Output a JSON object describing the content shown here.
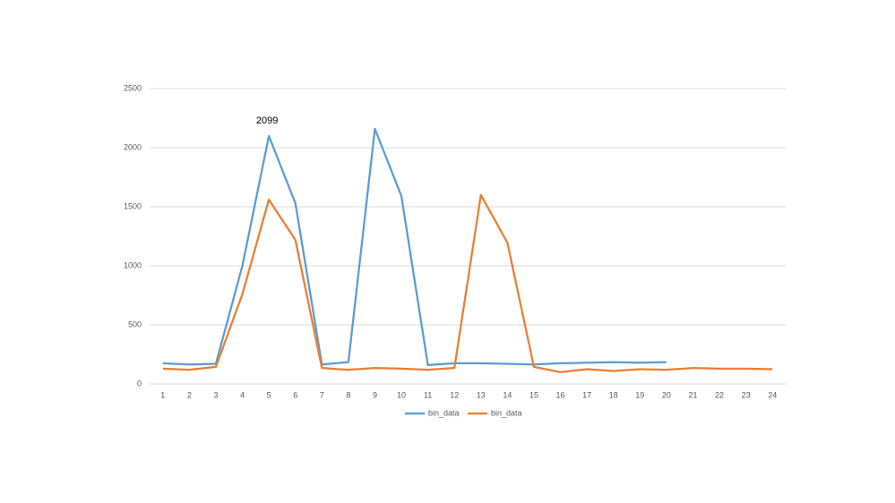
{
  "chart_data": {
    "type": "line",
    "categories": [
      "1",
      "2",
      "3",
      "4",
      "5",
      "6",
      "7",
      "8",
      "9",
      "10",
      "11",
      "12",
      "13",
      "14",
      "15",
      "16",
      "17",
      "18",
      "19",
      "20",
      "21",
      "22",
      "23",
      "24"
    ],
    "series": [
      {
        "name": "bin_data",
        "color": "#5b9bd5",
        "values": [
          175,
          165,
          170,
          1000,
          2099,
          1530,
          165,
          185,
          2160,
          1590,
          160,
          175,
          175,
          170,
          165,
          175,
          180,
          185,
          180,
          185,
          null,
          null,
          null,
          null
        ],
        "value_labels": [
          null,
          null,
          null,
          null,
          "2099",
          null,
          null,
          null,
          null,
          null,
          null,
          null,
          null,
          null,
          null,
          null,
          null,
          null,
          null,
          null,
          null,
          null,
          null,
          null
        ]
      },
      {
        "name": "bin_data",
        "color": "#ed7d31",
        "values": [
          130,
          120,
          145,
          760,
          1560,
          1220,
          135,
          120,
          135,
          130,
          120,
          135,
          1600,
          1195,
          145,
          100,
          125,
          110,
          125,
          120,
          135,
          130,
          130,
          125
        ]
      }
    ],
    "ylim": [
      0,
      2500
    ],
    "yticks": [
      0,
      500,
      1000,
      1500,
      2000,
      2500
    ],
    "grid": true,
    "legend": "bottom"
  }
}
